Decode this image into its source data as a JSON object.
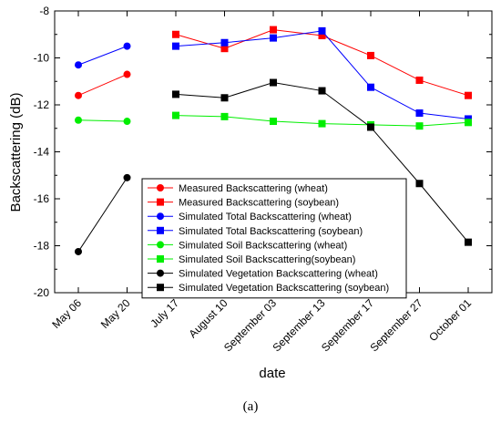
{
  "chart_data": {
    "type": "line",
    "xlabel": "date",
    "ylabel": "Backscattering  (dB)",
    "ylim": [
      -20,
      -8
    ],
    "yticks": [
      -8,
      -10,
      -12,
      -14,
      -16,
      -18,
      -20
    ],
    "categories": [
      "May 06",
      "May 20",
      "July 17",
      "August 10",
      "September 03",
      "September 13",
      "September 17",
      "September 27",
      "October 01"
    ],
    "series": [
      {
        "name": "Measured Backscattering (wheat)",
        "crop": "wheat",
        "color": "#ff0000",
        "marker": "circle",
        "values": [
          -11.6,
          -10.7,
          null,
          null,
          null,
          null,
          null,
          null,
          null
        ]
      },
      {
        "name": "Measured Backscattering (soybean)",
        "crop": "soybean",
        "color": "#ff0000",
        "marker": "square",
        "values": [
          null,
          null,
          -9.0,
          -9.6,
          -8.8,
          -9.05,
          -9.9,
          -10.95,
          -11.6
        ]
      },
      {
        "name": "Simulated Total Backscattering (wheat)",
        "crop": "wheat",
        "color": "#0000ff",
        "marker": "circle",
        "values": [
          -10.3,
          -9.5,
          null,
          null,
          null,
          null,
          null,
          null,
          null
        ]
      },
      {
        "name": "Simulated Total Backscattering (soybean)",
        "crop": "soybean",
        "color": "#0000ff",
        "marker": "square",
        "values": [
          null,
          null,
          -9.5,
          -9.35,
          -9.15,
          -8.85,
          -11.25,
          -12.35,
          -12.6
        ]
      },
      {
        "name": "Simulated Soil Backscattering (wheat)",
        "crop": "wheat",
        "color": "#00ee00",
        "marker": "circle",
        "values": [
          -12.65,
          -12.7,
          null,
          null,
          null,
          null,
          null,
          null,
          null
        ]
      },
      {
        "name": "Simulated Soil Backscattering(soybean)",
        "crop": "soybean",
        "color": "#00ee00",
        "marker": "square",
        "values": [
          null,
          null,
          -12.45,
          -12.5,
          -12.7,
          -12.8,
          -12.85,
          -12.9,
          -12.75
        ]
      },
      {
        "name": "Simulated Vegetation Backscattering (wheat)",
        "crop": "wheat",
        "color": "#000000",
        "marker": "circle",
        "values": [
          -18.25,
          -15.1,
          null,
          null,
          null,
          null,
          null,
          null,
          null
        ]
      },
      {
        "name": "Simulated Vegetation Backscattering (soybean)",
        "crop": "soybean",
        "color": "#000000",
        "marker": "square",
        "values": [
          null,
          null,
          -11.55,
          -11.7,
          -11.05,
          -11.4,
          -12.95,
          -15.35,
          -17.85
        ]
      }
    ],
    "legend_position": "inside-bottom-center",
    "grid": false
  },
  "caption": "(a)"
}
